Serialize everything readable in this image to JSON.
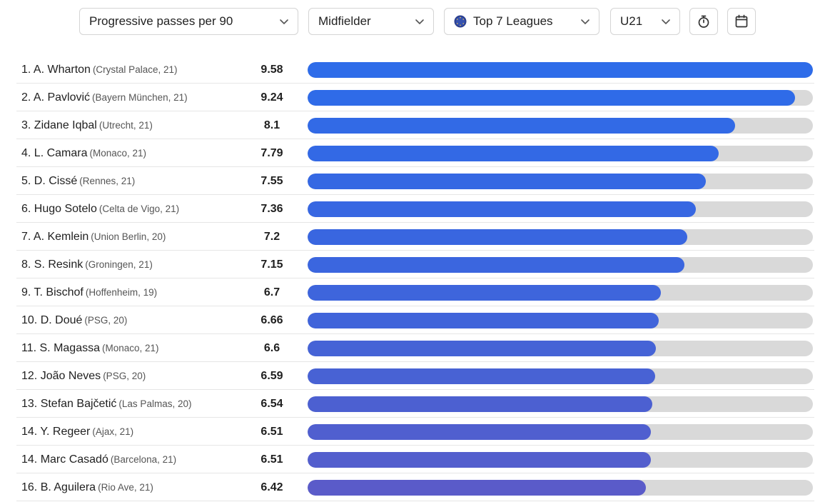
{
  "filters": {
    "metric": "Progressive passes per 90",
    "position": "Midfielder",
    "league": "Top 7 Leagues",
    "age": "U21"
  },
  "icons": {
    "dropdown": "chevron-down-icon",
    "league": "globe-icon",
    "minutes": "stopwatch-icon",
    "season": "calendar-icon"
  },
  "colors": {
    "bar_top": "#2f6be8",
    "bar_bottom": "#5a5bc9",
    "track": "#d9d9d9"
  },
  "ranking": {
    "max_value": 9.58,
    "rows": [
      {
        "label": "1. A. Wharton",
        "meta": "(Crystal Palace, 21)",
        "value": "9.58",
        "num": 9.58,
        "color": "#2e6ce9"
      },
      {
        "label": "2. A. Pavlović",
        "meta": "(Bayern München, 21)",
        "value": "9.24",
        "num": 9.24,
        "color": "#2f6be8"
      },
      {
        "label": "3. Zidane Iqbal",
        "meta": "(Utrecht, 21)",
        "value": "8.1",
        "num": 8.1,
        "color": "#326ae6"
      },
      {
        "label": "4. L. Camara",
        "meta": "(Monaco, 21)",
        "value": "7.79",
        "num": 7.79,
        "color": "#3369e5"
      },
      {
        "label": "5. D. Cissé",
        "meta": "(Rennes, 21)",
        "value": "7.55",
        "num": 7.55,
        "color": "#3568e3"
      },
      {
        "label": "6. Hugo Sotelo",
        "meta": "(Celta de Vigo, 21)",
        "value": "7.36",
        "num": 7.36,
        "color": "#3767e2"
      },
      {
        "label": "7. A. Kemlein",
        "meta": "(Union Berlin, 20)",
        "value": "7.2",
        "num": 7.2,
        "color": "#3966e0"
      },
      {
        "label": "8. S. Resink",
        "meta": "(Groningen, 21)",
        "value": "7.15",
        "num": 7.15,
        "color": "#3b66df"
      },
      {
        "label": "9. T. Bischof",
        "meta": "(Hoffenheim, 19)",
        "value": "6.7",
        "num": 6.7,
        "color": "#3e65dc"
      },
      {
        "label": "10. D. Doué",
        "meta": "(PSG, 20)",
        "value": "6.66",
        "num": 6.66,
        "color": "#4064da"
      },
      {
        "label": "11. S. Magassa",
        "meta": "(Monaco, 21)",
        "value": "6.6",
        "num": 6.6,
        "color": "#4563d6"
      },
      {
        "label": "12. João Neves",
        "meta": "(PSG, 20)",
        "value": "6.59",
        "num": 6.59,
        "color": "#4862d4"
      },
      {
        "label": "13. Stefan Bajčetić",
        "meta": "(Las Palmas, 20)",
        "value": "6.54",
        "num": 6.54,
        "color": "#4c60d1"
      },
      {
        "label": "14. Y. Regeer",
        "meta": "(Ajax, 21)",
        "value": "6.51",
        "num": 6.51,
        "color": "#505fcf"
      },
      {
        "label": "14. Marc Casadó",
        "meta": "(Barcelona, 21)",
        "value": "6.51",
        "num": 6.51,
        "color": "#535ecd"
      },
      {
        "label": "16. B. Aguilera",
        "meta": "(Rio Ave, 21)",
        "value": "6.42",
        "num": 6.42,
        "color": "#5a5bc9"
      }
    ]
  }
}
